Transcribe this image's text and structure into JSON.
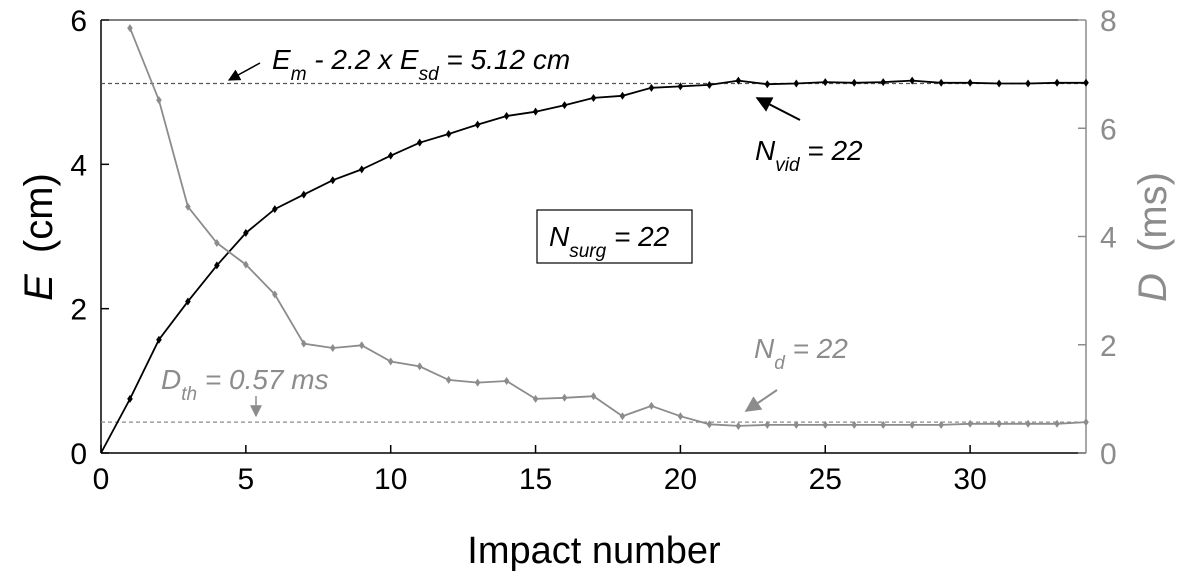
{
  "colors": {
    "e_series": "#000000",
    "d_series": "#8c8c8c",
    "threshold_line": "#555555"
  },
  "chart_data": {
    "type": "line",
    "xlabel": "Impact number",
    "xlim": [
      0,
      34
    ],
    "xticks": [
      0,
      5,
      10,
      15,
      20,
      25,
      30
    ],
    "y_left": {
      "label_symbol": "E",
      "label_unit": "(cm)",
      "ylim": [
        0,
        6
      ],
      "ticks": [
        0,
        2,
        4,
        6
      ]
    },
    "y_right": {
      "label_symbol": "D",
      "label_unit": "(ms)",
      "ylim": [
        0,
        8
      ],
      "ticks": [
        0,
        2,
        4,
        6,
        8
      ]
    },
    "grid": false,
    "series": [
      {
        "axis": "left",
        "color": "#000000",
        "x": [
          0,
          1,
          2,
          3,
          4,
          5,
          6,
          7,
          8,
          9,
          10,
          11,
          12,
          13,
          14,
          15,
          16,
          17,
          18,
          19,
          20,
          21,
          22,
          23,
          24,
          25,
          26,
          27,
          28,
          29,
          30,
          31,
          32,
          33,
          34
        ],
        "values": [
          0,
          0.75,
          1.57,
          2.1,
          2.6,
          3.05,
          3.38,
          3.58,
          3.78,
          3.93,
          4.12,
          4.3,
          4.42,
          4.55,
          4.67,
          4.73,
          4.82,
          4.92,
          4.95,
          5.06,
          5.08,
          5.1,
          5.16,
          5.11,
          5.12,
          5.14,
          5.13,
          5.14,
          5.16,
          5.13,
          5.13,
          5.12,
          5.12,
          5.13,
          5.13
        ]
      },
      {
        "axis": "right",
        "color": "#8c8c8c",
        "x": [
          1,
          2,
          3,
          4,
          5,
          6,
          7,
          8,
          9,
          10,
          11,
          12,
          13,
          14,
          15,
          16,
          17,
          18,
          19,
          20,
          21,
          22,
          23,
          24,
          25,
          26,
          27,
          28,
          29,
          30,
          31,
          32,
          33,
          34
        ],
        "values": [
          7.85,
          6.52,
          4.55,
          3.88,
          3.48,
          2.93,
          2.02,
          1.94,
          1.99,
          1.69,
          1.6,
          1.35,
          1.3,
          1.33,
          1.0,
          1.02,
          1.05,
          0.68,
          0.87,
          0.68,
          0.53,
          0.5,
          0.52,
          0.52,
          0.52,
          0.52,
          0.52,
          0.52,
          0.52,
          0.54,
          0.54,
          0.54,
          0.54,
          0.57
        ]
      }
    ],
    "threshold_e": 5.12,
    "threshold_d": 0.57,
    "annotations": {
      "e_threshold": {
        "sym1": "E",
        "sub1": "m",
        "mid": " - 2.2 x ",
        "sym2": "E",
        "sub2": "sd",
        "tail": " = 5.12 cm"
      },
      "n_vid": {
        "sym": "N",
        "sub": "vid",
        "tail": " = 22",
        "point_x": 22
      },
      "n_surg": {
        "sym": "N",
        "sub": "surg",
        "tail": " = 22"
      },
      "n_d": {
        "sym": "N",
        "sub": "d",
        "tail": " = 22",
        "point_x": 22
      },
      "d_threshold": {
        "sym": "D",
        "sub": "th",
        "tail": " = 0.57 ms",
        "point_x": 5.3
      }
    }
  }
}
